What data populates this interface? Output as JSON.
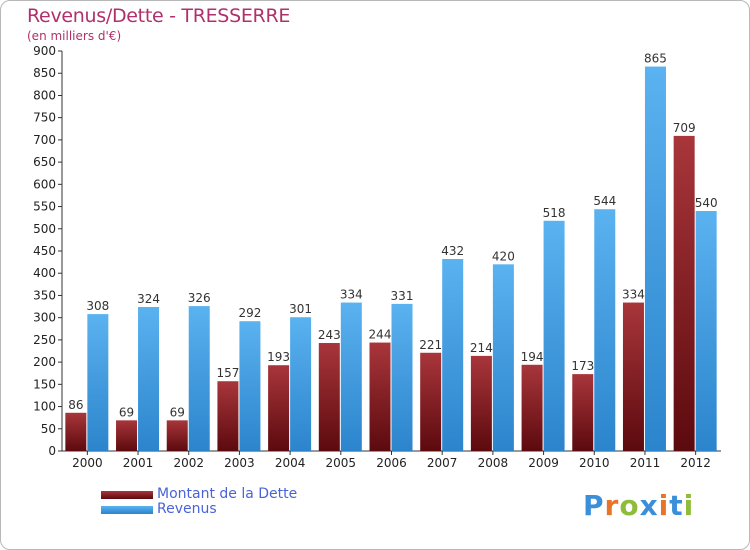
{
  "title": "Revenus/Dette - TRESSERRE",
  "subtitle": "(en milliers d'€)",
  "logo": {
    "text": "Proxiti",
    "colors": [
      "#3a8fd8",
      "#e8742a",
      "#8fbd3a",
      "#3a8fd8",
      "#e8742a",
      "#3a8fd8",
      "#8fbd3a"
    ]
  },
  "chart_data": {
    "type": "bar",
    "title": "Revenus/Dette - TRESSERRE",
    "subtitle": "(en milliers d'€)",
    "categories": [
      "2000",
      "2001",
      "2002",
      "2003",
      "2004",
      "2005",
      "2006",
      "2007",
      "2008",
      "2009",
      "2010",
      "2011",
      "2012"
    ],
    "series": [
      {
        "name": "Montant de la Dette",
        "color": "#7a1a1e",
        "values": [
          86,
          69,
          69,
          157,
          193,
          243,
          244,
          221,
          214,
          194,
          173,
          334,
          709
        ]
      },
      {
        "name": "Revenus",
        "color": "#4aa3e8",
        "values": [
          308,
          324,
          326,
          292,
          301,
          334,
          331,
          432,
          420,
          518,
          544,
          865,
          540
        ]
      }
    ],
    "ylim": [
      0,
      900
    ],
    "yticks": [
      0,
      50,
      100,
      150,
      200,
      250,
      300,
      350,
      400,
      450,
      500,
      550,
      600,
      650,
      700,
      750,
      800,
      850,
      900
    ],
    "grid": false,
    "legend_position": "bottom-left",
    "data_labels": true
  }
}
